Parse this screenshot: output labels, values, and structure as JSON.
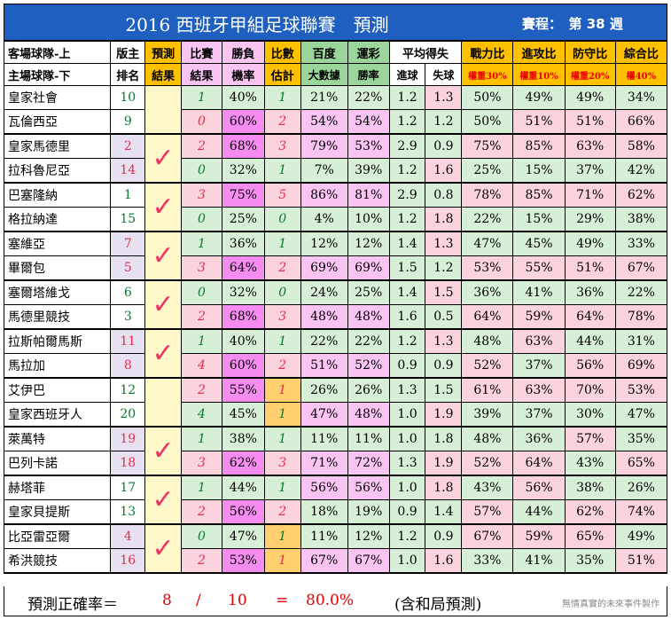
{
  "title": "2016 西班牙甲組足球聯賽　預測",
  "round": "賽程：　第 38 週",
  "headers": {
    "team_top": "客場球隊-上",
    "team_bottom": "主場球隊-下",
    "rank_1": "版主",
    "rank_2": "排名",
    "pred_1": "預測",
    "pred_2": "結果",
    "result_1": "比賽",
    "result_2": "結果",
    "win_1": "勝負",
    "win_2": "機率",
    "score_1": "比數",
    "score_2": "估計",
    "baidu_1": "百度",
    "baidu_2": "大數據",
    "yuncai_1": "運彩",
    "yuncai_2": "勝率",
    "avg_1": "平均得失",
    "avg_in": "進球",
    "avg_out": "失球",
    "war_1": "戰力比",
    "war_2": "權重30%",
    "atk_1": "進攻比",
    "atk_2": "權重10%",
    "def_1": "防守比",
    "def_2": "權重20%",
    "tot_1": "綜合比",
    "tot_2": "權40%"
  },
  "matches": [
    {
      "correct": false,
      "rows": [
        {
          "team": "皇家社會",
          "rank": "10",
          "result": "1",
          "win": "40%",
          "score": "1",
          "baidu": "21%",
          "yuncai": "22%",
          "gf": "1.2",
          "ga": "1.3",
          "war": "50%",
          "atk": "49%",
          "def": "49%",
          "tot": "34%"
        },
        {
          "team": "瓦倫西亞",
          "rank": "9",
          "result": "0",
          "win": "60%",
          "score": "2",
          "baidu": "54%",
          "yuncai": "54%",
          "gf": "1.2",
          "ga": "1.2",
          "war": "50%",
          "atk": "51%",
          "def": "51%",
          "tot": "66%"
        }
      ]
    },
    {
      "correct": true,
      "rows": [
        {
          "team": "皇家馬德里",
          "rank": "2",
          "result": "2",
          "win": "68%",
          "score": "3",
          "baidu": "79%",
          "yuncai": "53%",
          "gf": "2.9",
          "ga": "0.9",
          "war": "75%",
          "atk": "85%",
          "def": "63%",
          "tot": "58%"
        },
        {
          "team": "拉科魯尼亞",
          "rank": "14",
          "result": "0",
          "win": "32%",
          "score": "1",
          "baidu": "7%",
          "yuncai": "39%",
          "gf": "1.2",
          "ga": "1.6",
          "war": "25%",
          "atk": "15%",
          "def": "37%",
          "tot": "42%"
        }
      ]
    },
    {
      "correct": true,
      "rows": [
        {
          "team": "巴塞隆納",
          "rank": "1",
          "result": "3",
          "win": "75%",
          "score": "5",
          "baidu": "86%",
          "yuncai": "81%",
          "gf": "2.9",
          "ga": "0.8",
          "war": "78%",
          "atk": "85%",
          "def": "71%",
          "tot": "62%"
        },
        {
          "team": "格拉納達",
          "rank": "15",
          "result": "0",
          "win": "25%",
          "score": "0",
          "baidu": "4%",
          "yuncai": "10%",
          "gf": "1.2",
          "ga": "1.8",
          "war": "22%",
          "atk": "15%",
          "def": "29%",
          "tot": "38%"
        }
      ]
    },
    {
      "correct": true,
      "rows": [
        {
          "team": "塞維亞",
          "rank": "7",
          "result": "1",
          "win": "36%",
          "score": "1",
          "baidu": "12%",
          "yuncai": "12%",
          "gf": "1.4",
          "ga": "1.3",
          "war": "47%",
          "atk": "45%",
          "def": "49%",
          "tot": "33%"
        },
        {
          "team": "畢爾包",
          "rank": "5",
          "result": "3",
          "win": "64%",
          "score": "2",
          "baidu": "69%",
          "yuncai": "69%",
          "gf": "1.5",
          "ga": "1.2",
          "war": "53%",
          "atk": "55%",
          "def": "51%",
          "tot": "67%"
        }
      ]
    },
    {
      "correct": true,
      "rows": [
        {
          "team": "塞爾塔維戈",
          "rank": "6",
          "result": "0",
          "win": "32%",
          "score": "0",
          "baidu": "24%",
          "yuncai": "25%",
          "gf": "1.4",
          "ga": "1.5",
          "war": "36%",
          "atk": "41%",
          "def": "36%",
          "tot": "22%"
        },
        {
          "team": "馬德里競技",
          "rank": "3",
          "result": "2",
          "win": "68%",
          "score": "3",
          "baidu": "48%",
          "yuncai": "48%",
          "gf": "1.6",
          "ga": "0.5",
          "war": "64%",
          "atk": "59%",
          "def": "64%",
          "tot": "78%"
        }
      ]
    },
    {
      "correct": true,
      "rows": [
        {
          "team": "拉斯帕爾馬斯",
          "rank": "11",
          "result": "1",
          "win": "40%",
          "score": "1",
          "baidu": "22%",
          "yuncai": "22%",
          "gf": "1.2",
          "ga": "1.3",
          "war": "48%",
          "atk": "63%",
          "def": "44%",
          "tot": "31%"
        },
        {
          "team": "馬拉加",
          "rank": "8",
          "result": "4",
          "win": "60%",
          "score": "2",
          "baidu": "51%",
          "yuncai": "52%",
          "gf": "0.9",
          "ga": "0.9",
          "war": "52%",
          "atk": "37%",
          "def": "56%",
          "tot": "69%"
        }
      ]
    },
    {
      "correct": false,
      "rows": [
        {
          "team": "艾伊巴",
          "rank": "12",
          "result": "2",
          "win": "55%",
          "score": "1",
          "baidu": "26%",
          "yuncai": "26%",
          "gf": "1.3",
          "ga": "1.5",
          "war": "61%",
          "atk": "63%",
          "def": "70%",
          "tot": "53%"
        },
        {
          "team": "皇家西班牙人",
          "rank": "20",
          "result": "4",
          "win": "45%",
          "score": "1",
          "baidu": "47%",
          "yuncai": "48%",
          "gf": "1.0",
          "ga": "1.9",
          "war": "39%",
          "atk": "37%",
          "def": "30%",
          "tot": "47%"
        }
      ]
    },
    {
      "correct": true,
      "rows": [
        {
          "team": "萊萬特",
          "rank": "19",
          "result": "1",
          "win": "38%",
          "score": "1",
          "baidu": "11%",
          "yuncai": "11%",
          "gf": "1.0",
          "ga": "1.8",
          "war": "48%",
          "atk": "36%",
          "def": "57%",
          "tot": "35%"
        },
        {
          "team": "巴列卡諾",
          "rank": "18",
          "result": "3",
          "win": "62%",
          "score": "3",
          "baidu": "71%",
          "yuncai": "72%",
          "gf": "1.3",
          "ga": "1.9",
          "war": "52%",
          "atk": "64%",
          "def": "43%",
          "tot": "65%"
        }
      ]
    },
    {
      "correct": true,
      "rows": [
        {
          "team": "赫塔菲",
          "rank": "17",
          "result": "1",
          "win": "44%",
          "score": "1",
          "baidu": "56%",
          "yuncai": "56%",
          "gf": "1.0",
          "ga": "1.8",
          "war": "43%",
          "atk": "56%",
          "def": "38%",
          "tot": "26%"
        },
        {
          "team": "皇家貝提斯",
          "rank": "13",
          "result": "2",
          "win": "56%",
          "score": "2",
          "baidu": "18%",
          "yuncai": "19%",
          "gf": "0.9",
          "ga": "1.4",
          "war": "57%",
          "atk": "44%",
          "def": "62%",
          "tot": "74%"
        }
      ]
    },
    {
      "correct": true,
      "rows": [
        {
          "team": "比亞雷亞爾",
          "rank": "4",
          "result": "0",
          "win": "47%",
          "score": "1",
          "baidu": "11%",
          "yuncai": "12%",
          "gf": "1.2",
          "ga": "0.9",
          "war": "67%",
          "atk": "59%",
          "def": "65%",
          "tot": "49%"
        },
        {
          "team": "希洪競技",
          "rank": "16",
          "result": "2",
          "win": "53%",
          "score": "1",
          "baidu": "67%",
          "yuncai": "67%",
          "gf": "1.0",
          "ga": "1.6",
          "war": "33%",
          "atk": "41%",
          "def": "35%",
          "tot": "51%"
        }
      ]
    }
  ],
  "check_mark": "✓",
  "footer": {
    "label": "預測正確率＝",
    "correct": "8",
    "slash": "/",
    "total": "10",
    "equals": "=",
    "rate": "80.0%",
    "note": "(含和局預測)",
    "credit": "無情真實的未來事件製作"
  },
  "colors": {
    "title_bg": "#1f5fbf",
    "green_cell": "#d6efd6",
    "pink_cell": "#fbd3dd",
    "magenta_cell": "#f58cf0",
    "gold_cell": "#ffcf70",
    "lavender_rank": "#e6e0f0",
    "check": "#ee3366"
  }
}
